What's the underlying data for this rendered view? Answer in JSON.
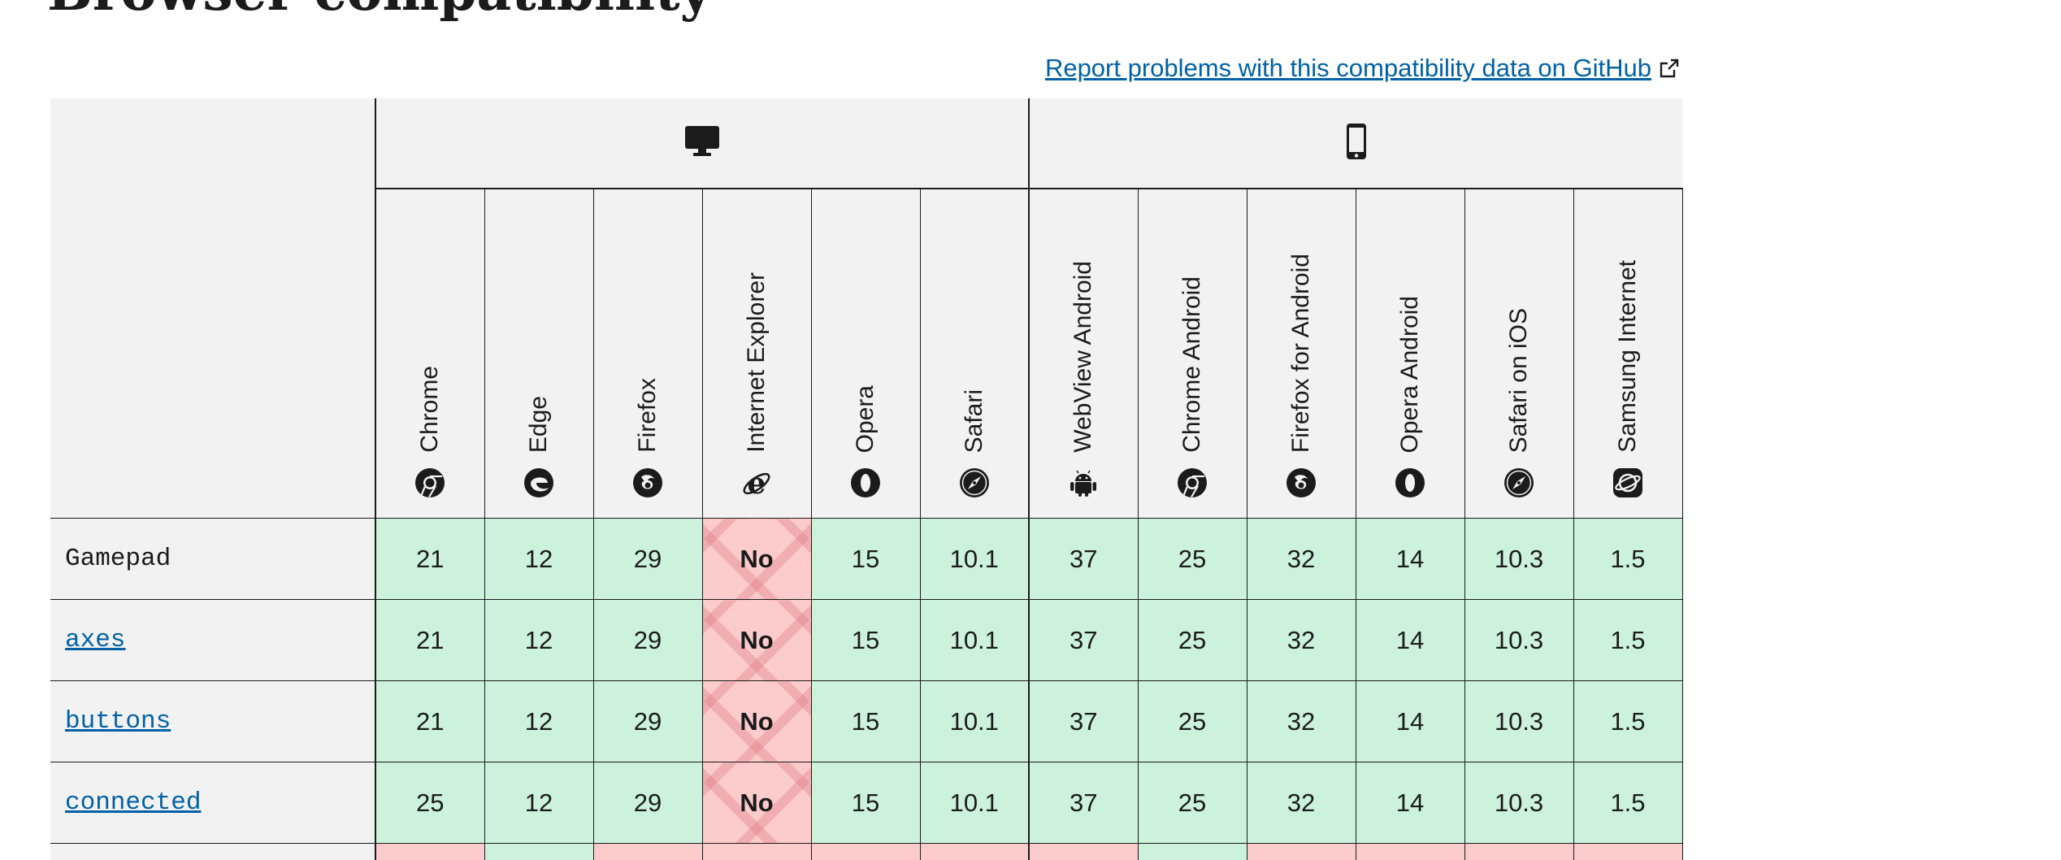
{
  "page": {
    "heading": "Browser compatibility",
    "report_link": "Report problems with this compatibility data on GitHub"
  },
  "table": {
    "platforms": [
      {
        "name": "desktop",
        "icon": "desktop-icon"
      },
      {
        "name": "mobile",
        "icon": "mobile-phone-icon"
      }
    ],
    "browsers": [
      {
        "name": "Chrome",
        "icon": "chrome-icon"
      },
      {
        "name": "Edge",
        "icon": "edge-icon"
      },
      {
        "name": "Firefox",
        "icon": "firefox-icon"
      },
      {
        "name": "Internet Explorer",
        "icon": "internet-explorer-icon"
      },
      {
        "name": "Opera",
        "icon": "opera-icon"
      },
      {
        "name": "Safari",
        "icon": "safari-icon"
      },
      {
        "name": "WebView Android",
        "icon": "android-icon"
      },
      {
        "name": "Chrome Android",
        "icon": "chrome-icon"
      },
      {
        "name": "Firefox for Android",
        "icon": "firefox-icon"
      },
      {
        "name": "Opera Android",
        "icon": "opera-icon"
      },
      {
        "name": "Safari on iOS",
        "icon": "safari-icon"
      },
      {
        "name": "Samsung Internet",
        "icon": "samsung-internet-icon"
      }
    ],
    "rows": [
      {
        "feature": "Gamepad",
        "link": false,
        "cells": [
          "21",
          "12",
          "29",
          "No",
          "15",
          "10.1",
          "37",
          "25",
          "32",
          "14",
          "10.3",
          "1.5"
        ]
      },
      {
        "feature": "axes",
        "link": true,
        "cells": [
          "21",
          "12",
          "29",
          "No",
          "15",
          "10.1",
          "37",
          "25",
          "32",
          "14",
          "10.3",
          "1.5"
        ]
      },
      {
        "feature": "buttons",
        "link": true,
        "cells": [
          "21",
          "12",
          "29",
          "No",
          "15",
          "10.1",
          "37",
          "25",
          "32",
          "14",
          "10.3",
          "1.5"
        ]
      },
      {
        "feature": "connected",
        "link": true,
        "cells": [
          "25",
          "12",
          "29",
          "No",
          "15",
          "10.1",
          "37",
          "25",
          "32",
          "14",
          "10.3",
          "1.5"
        ]
      }
    ],
    "partial_row_support": [
      "no",
      "yes",
      "no",
      "no",
      "no",
      "no",
      "no",
      "yes",
      "no",
      "no",
      "no",
      "no"
    ]
  },
  "colors": {
    "supported_bg": "#ccf2dc",
    "unsupported_bg": "#fccbcb",
    "header_bg": "#f2f2f2",
    "link": "#0061a6"
  }
}
